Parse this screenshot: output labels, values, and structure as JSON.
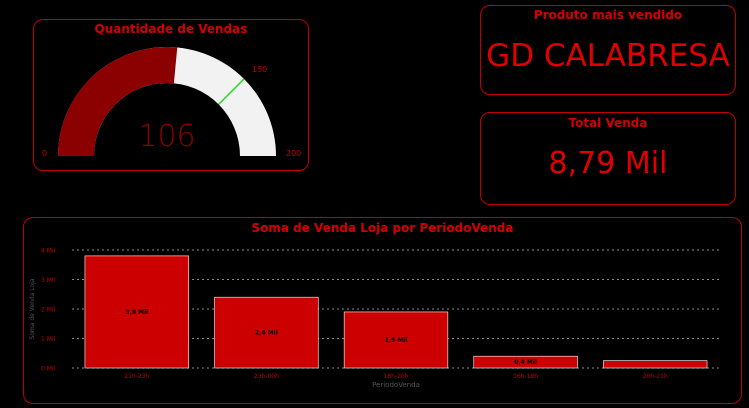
{
  "gauge": {
    "title": "Quantidade de Vendas",
    "value": 106,
    "value_label": "106",
    "min": 0,
    "max": 200,
    "target": 150,
    "min_label": "0",
    "max_label": "200",
    "target_label": "150",
    "fill_color": "#8b0000",
    "track_color": "#f2f2f2",
    "target_color": "#22dd22"
  },
  "top_product": {
    "title": "Produto mais vendido",
    "value": "GD CALABRESA"
  },
  "total": {
    "title": "Total Venda",
    "value": "8,79 Mil"
  },
  "chart_data": {
    "type": "bar",
    "title": "Soma de Venda Loja por PeriodoVenda",
    "xlabel": "PeriodoVenda",
    "ylabel": "Soma de Venda Loja",
    "categories": [
      "21h-23h",
      "23h-00h",
      "18h-20h",
      "16h-18h",
      "20h-21h"
    ],
    "values": [
      3.8,
      2.4,
      1.9,
      0.4,
      0.25
    ],
    "data_labels": [
      "3,8 Mil",
      "2,4 Mil",
      "1,9 Mil",
      "0,4 Mil",
      ""
    ],
    "yticks": [
      "0 Mil",
      "1 Mil",
      "2 Mil",
      "3 Mil",
      "4 Mil"
    ],
    "ylim": [
      0,
      4
    ],
    "grid": true,
    "bar_color": "#cc0000"
  }
}
